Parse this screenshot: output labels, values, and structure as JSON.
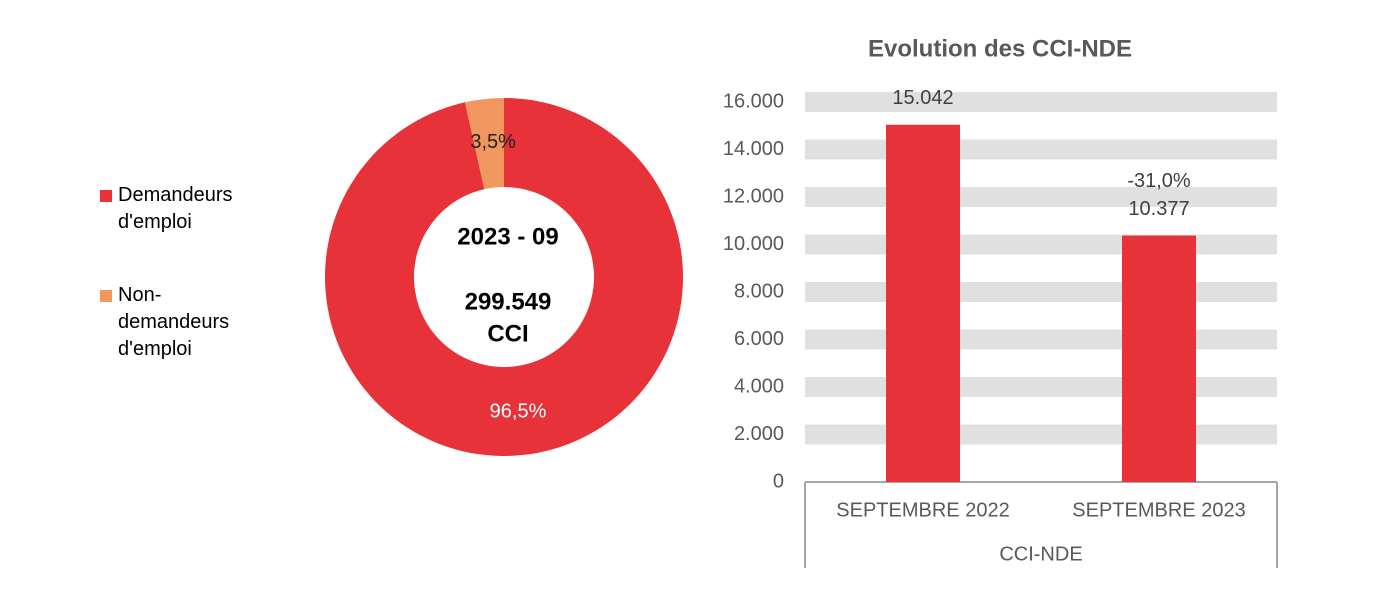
{
  "chart_data": [
    {
      "type": "pie",
      "hole": true,
      "series": [
        {
          "name": "Demandeurs d'emploi",
          "color": "#e8323a",
          "values": [
            96.5
          ],
          "value_labels": [
            "96,5%"
          ]
        },
        {
          "name": "Non-demandeurs d'emploi",
          "color": "#f0975f",
          "values": [
            3.5
          ],
          "value_labels": [
            "3,5%"
          ]
        }
      ],
      "center_title": "2023 - 09",
      "center_value": "299.549",
      "center_unit": "CCI"
    },
    {
      "type": "bar",
      "title": "Evolution des CCI-NDE",
      "categories": [
        "SEPTEMBRE 2022",
        "SEPTEMBRE 2023"
      ],
      "group_label": "CCI-NDE",
      "values": [
        15042,
        10377
      ],
      "value_labels": [
        "15.042",
        "10.377"
      ],
      "annotation": "-31,0%",
      "color": "#e8323a",
      "ylim": [
        0,
        16000
      ],
      "yticks": [
        0,
        {
          "value": 2000,
          "label": "2.000"
        },
        {
          "value": 4000,
          "label": "4.000"
        },
        {
          "value": 6000,
          "label": "6.000"
        },
        {
          "value": 8000,
          "label": "8.000"
        },
        {
          "value": 10000,
          "label": "10.000"
        },
        {
          "value": 12000,
          "label": "12.000"
        },
        {
          "value": 14000,
          "label": "14.000"
        },
        {
          "value": 16000,
          "label": "16.000"
        }
      ],
      "grid": true
    }
  ]
}
